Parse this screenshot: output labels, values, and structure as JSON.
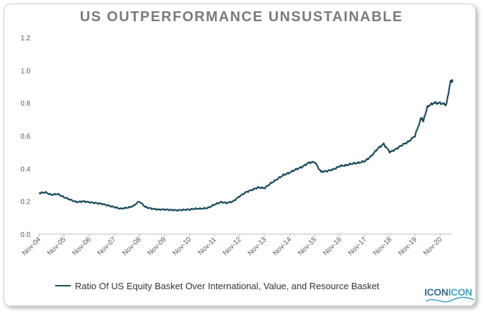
{
  "title": "US OUTPERFORMANCE UNSUSTAINABLE",
  "logo": {
    "text": "ICONICON",
    "colors": [
      "#3a6f8f",
      "#4aa3c4"
    ]
  },
  "chart_data": {
    "type": "line",
    "title": "US OUTPERFORMANCE UNSUSTAINABLE",
    "xlabel": "",
    "ylabel": "",
    "ylim": [
      0,
      1.2
    ],
    "xlim": [
      "2004-11",
      "2021-05"
    ],
    "y_ticks": [
      "0.0",
      "0.2",
      "0.4",
      "0.6",
      "0.8",
      "1.0",
      "1.2"
    ],
    "x_ticks": [
      "Nov-04",
      "Nov-05",
      "Nov-06",
      "Nov-07",
      "Nov-08",
      "Nov-09",
      "Nov-10",
      "Nov-11",
      "Nov-12",
      "Nov-13",
      "Nov-14",
      "Nov-15",
      "Nov-16",
      "Nov-17",
      "Nov-18",
      "Nov-19",
      "Nov-20"
    ],
    "grid": false,
    "legend_position": "bottom",
    "color": "#1d4d5b",
    "series": [
      {
        "name": "Ratio Of US Equity Basket Over International, Value, and Resource Basket",
        "x": [
          "2004-11",
          "2005-02",
          "2005-05",
          "2005-08",
          "2005-11",
          "2006-02",
          "2006-05",
          "2006-08",
          "2006-11",
          "2007-02",
          "2007-05",
          "2007-08",
          "2007-11",
          "2008-02",
          "2008-05",
          "2008-08",
          "2008-11",
          "2009-02",
          "2009-05",
          "2009-08",
          "2009-11",
          "2010-02",
          "2010-05",
          "2010-08",
          "2010-11",
          "2011-02",
          "2011-05",
          "2011-08",
          "2011-11",
          "2012-02",
          "2012-05",
          "2012-08",
          "2012-11",
          "2013-02",
          "2013-05",
          "2013-08",
          "2013-11",
          "2014-02",
          "2014-05",
          "2014-08",
          "2014-11",
          "2015-02",
          "2015-05",
          "2015-08",
          "2015-11",
          "2016-02",
          "2016-05",
          "2016-08",
          "2016-11",
          "2017-02",
          "2017-05",
          "2017-08",
          "2017-11",
          "2018-02",
          "2018-05",
          "2018-08",
          "2018-11",
          "2019-02",
          "2019-05",
          "2019-08",
          "2019-11",
          "2020-02",
          "2020-03",
          "2020-05",
          "2020-08",
          "2020-11",
          "2021-02",
          "2021-04",
          "2021-05"
        ],
        "values": [
          0.25,
          0.255,
          0.24,
          0.245,
          0.225,
          0.21,
          0.195,
          0.2,
          0.195,
          0.19,
          0.185,
          0.175,
          0.165,
          0.155,
          0.16,
          0.17,
          0.2,
          0.165,
          0.155,
          0.15,
          0.15,
          0.148,
          0.145,
          0.148,
          0.15,
          0.155,
          0.155,
          0.16,
          0.18,
          0.195,
          0.19,
          0.2,
          0.23,
          0.255,
          0.27,
          0.285,
          0.28,
          0.31,
          0.335,
          0.36,
          0.375,
          0.395,
          0.41,
          0.435,
          0.44,
          0.38,
          0.385,
          0.395,
          0.415,
          0.42,
          0.43,
          0.435,
          0.445,
          0.475,
          0.52,
          0.55,
          0.5,
          0.52,
          0.545,
          0.565,
          0.6,
          0.71,
          0.69,
          0.78,
          0.8,
          0.8,
          0.79,
          0.93,
          0.94
        ]
      }
    ]
  }
}
